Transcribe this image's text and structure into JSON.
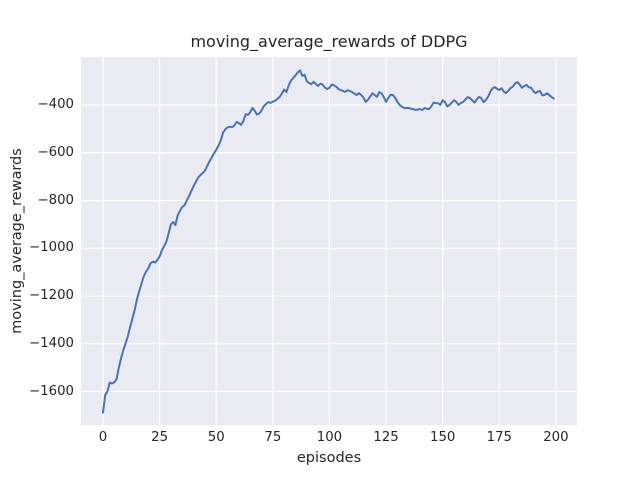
{
  "chart_data": {
    "type": "line",
    "title": "moving_average_rewards of DDPG",
    "xlabel": "episodes",
    "ylabel": "moving_average_rewards",
    "legend": "none",
    "grid": true,
    "xlim": [
      -9.7,
      209.3
    ],
    "ylim": [
      -1740,
      -199
    ],
    "x_tick_values": [
      0,
      25,
      50,
      75,
      100,
      125,
      150,
      175,
      200
    ],
    "x_tick_labels": [
      "0",
      "25",
      "50",
      "75",
      "100",
      "125",
      "150",
      "175",
      "200"
    ],
    "y_tick_values": [
      -400,
      -600,
      -800,
      -1000,
      -1200,
      -1400,
      -1600
    ],
    "y_tick_labels": [
      "−400",
      "−600",
      "−800",
      "−1000",
      "−1200",
      "−1400",
      "−1600"
    ],
    "x_mode": "index",
    "style": {
      "figure_bg": "#ffffff",
      "axes_bg": "#eaeaf2",
      "grid_color": "#ffffff",
      "line_color": "#4c72b0",
      "text_color": "#262626"
    },
    "series": [
      {
        "name": "moving_average_rewards",
        "values": [
          -1688,
          -1615,
          -1598,
          -1562,
          -1566,
          -1561,
          -1548,
          -1500,
          -1460,
          -1426,
          -1398,
          -1368,
          -1330,
          -1295,
          -1258,
          -1215,
          -1180,
          -1148,
          -1118,
          -1098,
          -1084,
          -1063,
          -1056,
          -1060,
          -1050,
          -1035,
          -1008,
          -992,
          -972,
          -938,
          -900,
          -890,
          -903,
          -862,
          -843,
          -827,
          -820,
          -800,
          -782,
          -760,
          -740,
          -722,
          -705,
          -693,
          -685,
          -675,
          -656,
          -637,
          -620,
          -603,
          -588,
          -570,
          -550,
          -516,
          -502,
          -494,
          -491,
          -493,
          -486,
          -471,
          -476,
          -483,
          -467,
          -438,
          -442,
          -430,
          -412,
          -424,
          -440,
          -436,
          -423,
          -405,
          -396,
          -388,
          -391,
          -386,
          -382,
          -375,
          -366,
          -352,
          -335,
          -346,
          -318,
          -298,
          -287,
          -276,
          -264,
          -255,
          -278,
          -273,
          -300,
          -308,
          -313,
          -303,
          -312,
          -320,
          -311,
          -315,
          -327,
          -333,
          -328,
          -314,
          -318,
          -323,
          -333,
          -338,
          -341,
          -345,
          -338,
          -341,
          -346,
          -352,
          -358,
          -350,
          -358,
          -368,
          -387,
          -378,
          -365,
          -351,
          -358,
          -366,
          -346,
          -351,
          -367,
          -387,
          -370,
          -357,
          -358,
          -369,
          -387,
          -400,
          -407,
          -412,
          -413,
          -412,
          -416,
          -417,
          -421,
          -419,
          -417,
          -421,
          -413,
          -416,
          -417,
          -405,
          -390,
          -392,
          -393,
          -399,
          -380,
          -388,
          -406,
          -400,
          -390,
          -380,
          -387,
          -399,
          -392,
          -387,
          -378,
          -367,
          -371,
          -380,
          -390,
          -377,
          -366,
          -371,
          -388,
          -379,
          -366,
          -345,
          -330,
          -325,
          -332,
          -337,
          -330,
          -344,
          -350,
          -340,
          -329,
          -323,
          -309,
          -304,
          -315,
          -328,
          -321,
          -316,
          -326,
          -327,
          -342,
          -350,
          -344,
          -342,
          -360,
          -358,
          -351,
          -358,
          -366,
          -373
        ]
      }
    ]
  }
}
